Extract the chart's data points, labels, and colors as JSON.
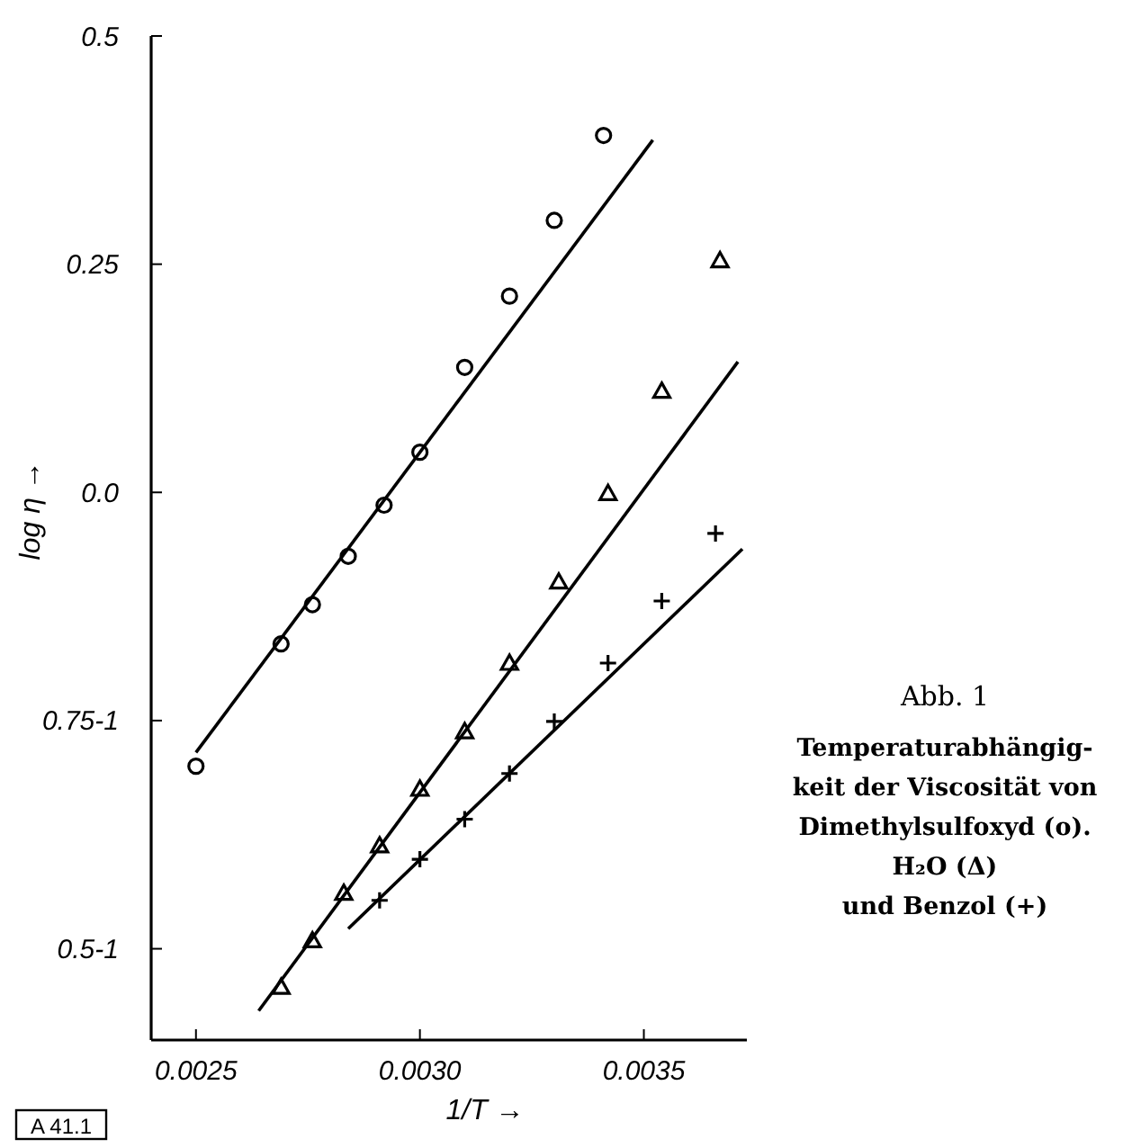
{
  "chart_data": {
    "type": "scatter",
    "xlabel": "1/T →",
    "ylabel": "log η →",
    "xlim": [
      0.0024,
      0.00373
    ],
    "ylim": [
      -0.6,
      0.5
    ],
    "xticks": [
      {
        "value": 0.0025,
        "label": "0.0025"
      },
      {
        "value": 0.003,
        "label": "0.0030"
      },
      {
        "value": 0.0035,
        "label": "0.0035"
      }
    ],
    "yticks": [
      {
        "value": -0.5,
        "label": "0.5-1"
      },
      {
        "value": -0.25,
        "label": "0.75-1"
      },
      {
        "value": 0,
        "label": "0.0"
      },
      {
        "value": 0.25,
        "label": "0.25"
      },
      {
        "value": 0.5,
        "label": "0.5"
      }
    ],
    "grid": false,
    "series": [
      {
        "marker": "circle",
        "color": "#000000",
        "x": [
          0.0025,
          0.00269,
          0.00276,
          0.00284,
          0.00292,
          0.003,
          0.0031,
          0.0032,
          0.0033,
          0.00341
        ],
        "values": [
          -0.3,
          -0.166,
          -0.123,
          -0.07,
          -0.014,
          0.044,
          0.137,
          0.215,
          0.298,
          0.391
        ]
      },
      {
        "marker": "triangle",
        "color": "#000000",
        "x": [
          0.00269,
          0.00276,
          0.00283,
          0.00291,
          0.003,
          0.0031,
          0.0032,
          0.00331,
          0.00342,
          0.00354,
          0.00367
        ],
        "values": [
          -0.542,
          -0.491,
          -0.439,
          -0.387,
          -0.325,
          -0.262,
          -0.187,
          -0.098,
          -0.001,
          0.111,
          0.254
        ]
      },
      {
        "marker": "cross",
        "color": "#000000",
        "x": [
          0.00291,
          0.003,
          0.0031,
          0.0032,
          0.0033,
          0.00342,
          0.00354,
          0.00366
        ],
        "values": [
          -0.447,
          -0.402,
          -0.358,
          -0.308,
          -0.251,
          -0.187,
          -0.119,
          -0.045
        ]
      },
      {
        "type": "line",
        "marker": "none",
        "line_style": "solid",
        "color": "#000000",
        "x": [
          0.0025,
          0.00352
        ],
        "values": [
          -0.285,
          0.386
        ]
      },
      {
        "type": "line",
        "marker": "none",
        "line_style": "solid",
        "color": "#000000",
        "x": [
          0.00264,
          0.00371
        ],
        "values": [
          -0.568,
          0.143
        ]
      },
      {
        "type": "line",
        "marker": "none",
        "line_style": "solid",
        "color": "#000000",
        "x": [
          0.00284,
          0.00372
        ],
        "values": [
          -0.478,
          -0.062
        ]
      }
    ],
    "annotations": [
      "Abb. 1",
      "Temperaturabhängig-",
      "keit der Viscosität von",
      "Dimethylsulfoxyd (o).",
      "H₂O (Δ)",
      "und Benzol (+)",
      "A 41.1"
    ]
  }
}
